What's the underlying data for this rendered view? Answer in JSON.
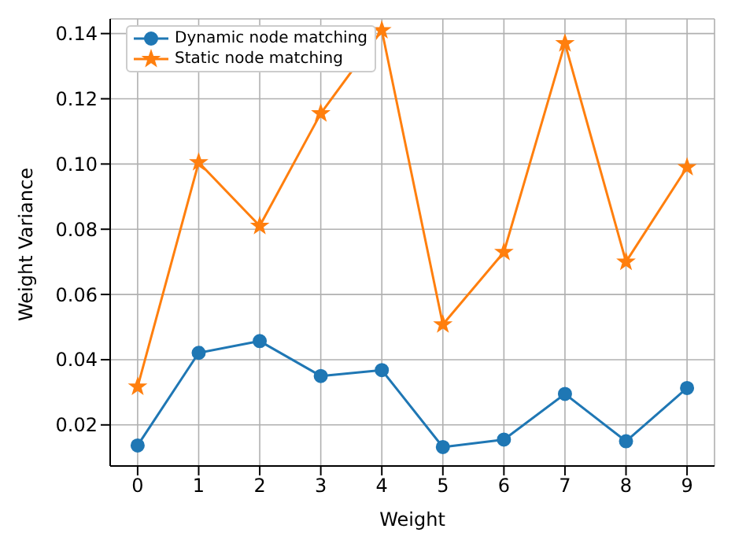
{
  "chart_data": {
    "type": "line",
    "xlabel": "Weight",
    "ylabel": "Weight Variance",
    "x": [
      0,
      1,
      2,
      3,
      4,
      5,
      6,
      7,
      8,
      9
    ],
    "series": [
      {
        "name": "Dynamic node matching",
        "color": "#1f77b4",
        "marker": "circle",
        "values": [
          0.0137,
          0.0421,
          0.0457,
          0.035,
          0.0368,
          0.0132,
          0.0155,
          0.0295,
          0.015,
          0.0313
        ]
      },
      {
        "name": "Static node matching",
        "color": "#ff7f0e",
        "marker": "star",
        "values": [
          0.0317,
          0.1005,
          0.081,
          0.1155,
          0.141,
          0.0508,
          0.073,
          0.137,
          0.07,
          0.099
        ]
      }
    ],
    "xlim": [
      -0.45,
      9.45
    ],
    "xticks": [
      0,
      1,
      2,
      3,
      4,
      5,
      6,
      7,
      8,
      9
    ],
    "ylim": [
      0.0074,
      0.1445
    ],
    "yticks": [
      {
        "value": 0.02,
        "label": "0.02"
      },
      {
        "value": 0.04,
        "label": "0.04"
      },
      {
        "value": 0.06,
        "label": "0.06"
      },
      {
        "value": 0.08,
        "label": "0.08"
      },
      {
        "value": 0.1,
        "label": "0.10"
      },
      {
        "value": 0.12,
        "label": "0.12"
      },
      {
        "value": 0.14,
        "label": "0.14"
      }
    ],
    "grid": true,
    "legend": "top left"
  }
}
